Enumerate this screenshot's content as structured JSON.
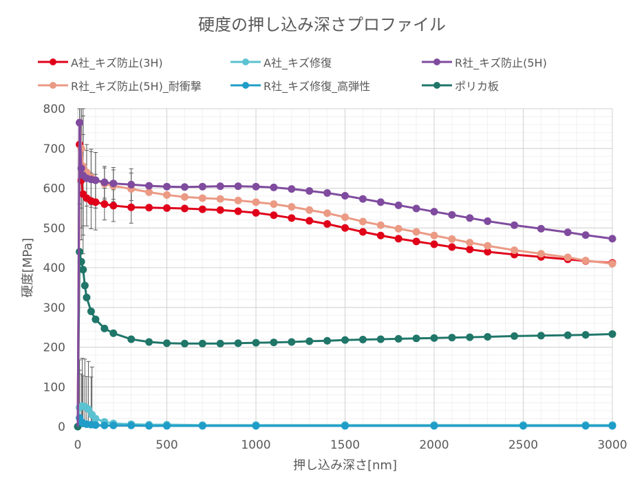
{
  "chart_data": {
    "type": "line",
    "title": "硬度の押し込み深さプロファイル",
    "xlabel": "押し込み深さ[nm]",
    "ylabel": "硬度[MPa]",
    "xlim": [
      0,
      3000
    ],
    "ylim": [
      0,
      800
    ],
    "x_ticks": [
      "0",
      "500",
      "1000",
      "1500",
      "2000",
      "2500",
      "3000"
    ],
    "y_ticks": [
      "0",
      "100",
      "200",
      "300",
      "400",
      "500",
      "600",
      "700",
      "800"
    ],
    "grid": true,
    "legend_position": "top",
    "error_bar_color": "#595959",
    "series": [
      {
        "name": "A社_キズ防止(3H)",
        "color": "#e00019",
        "x": [
          10,
          20,
          30,
          50,
          75,
          100,
          150,
          200,
          300,
          400,
          500,
          600,
          700,
          800,
          900,
          1000,
          1100,
          1200,
          1300,
          1400,
          1500,
          1600,
          1700,
          1800,
          1900,
          2000,
          2100,
          2200,
          2300,
          2450,
          2600,
          2750,
          2850,
          3000
        ],
        "y": [
          710,
          620,
          585,
          575,
          568,
          565,
          560,
          556,
          552,
          551,
          550,
          549,
          547,
          545,
          542,
          538,
          532,
          525,
          518,
          510,
          500,
          490,
          481,
          473,
          466,
          459,
          452,
          446,
          440,
          433,
          427,
          421,
          417,
          412
        ]
      },
      {
        "name": "A社_キズ修復",
        "color": "#5bc2d1",
        "x": [
          10,
          25,
          40,
          60,
          80,
          100,
          150,
          200,
          300,
          400,
          500,
          700,
          1000,
          1500,
          2000,
          2500,
          2850,
          3000
        ],
        "y": [
          48,
          52,
          50,
          44,
          30,
          20,
          12,
          8,
          6,
          5,
          5,
          4,
          4,
          4,
          4,
          4,
          4,
          4
        ]
      },
      {
        "name": "R社_キズ防止(5H)",
        "color": "#7f4b9e",
        "x": [
          10,
          20,
          30,
          50,
          75,
          100,
          150,
          200,
          300,
          400,
          500,
          600,
          700,
          800,
          900,
          1000,
          1100,
          1200,
          1300,
          1400,
          1500,
          1600,
          1700,
          1800,
          1900,
          2000,
          2100,
          2200,
          2300,
          2450,
          2600,
          2750,
          2850,
          3000
        ],
        "y": [
          765,
          650,
          632,
          625,
          622,
          620,
          615,
          612,
          609,
          606,
          604,
          603,
          604,
          605,
          605,
          604,
          602,
          598,
          593,
          588,
          581,
          573,
          565,
          557,
          549,
          541,
          533,
          525,
          517,
          507,
          498,
          489,
          482,
          473
        ]
      },
      {
        "name": "R社_キズ防止(5H)_耐衝撃",
        "color": "#eb9a84",
        "x": [
          10,
          20,
          30,
          50,
          75,
          100,
          150,
          200,
          300,
          400,
          500,
          600,
          700,
          800,
          900,
          1000,
          1100,
          1200,
          1300,
          1400,
          1500,
          1600,
          1700,
          1800,
          1900,
          2000,
          2100,
          2200,
          2300,
          2450,
          2600,
          2750,
          2850,
          3000
        ],
        "y": [
          765,
          700,
          655,
          640,
          628,
          620,
          611,
          606,
          598,
          590,
          583,
          578,
          575,
          573,
          569,
          565,
          560,
          553,
          545,
          537,
          527,
          516,
          507,
          498,
          490,
          481,
          472,
          463,
          455,
          444,
          435,
          426,
          418,
          410
        ]
      },
      {
        "name": "R社_キズ修復_高弾性",
        "color": "#1f9dc8",
        "x": [
          10,
          20,
          30,
          50,
          75,
          100,
          150,
          200,
          300,
          400,
          500,
          700,
          1000,
          1500,
          2000,
          2500,
          2850,
          3000
        ],
        "y": [
          22,
          12,
          8,
          6,
          5,
          4,
          3,
          3,
          3,
          2,
          2,
          2,
          2,
          2,
          2,
          2,
          2,
          2
        ]
      },
      {
        "name": "ポリカ板",
        "color": "#1f7669",
        "x": [
          0,
          10,
          20,
          30,
          40,
          50,
          75,
          100,
          150,
          200,
          300,
          400,
          500,
          600,
          700,
          800,
          900,
          1000,
          1100,
          1200,
          1300,
          1400,
          1500,
          1600,
          1700,
          1800,
          1900,
          2000,
          2100,
          2200,
          2300,
          2450,
          2600,
          2750,
          2850,
          3000
        ],
        "y": [
          0,
          440,
          415,
          395,
          355,
          325,
          290,
          270,
          247,
          235,
          220,
          213,
          210,
          209,
          209,
          209,
          210,
          211,
          212,
          213,
          215,
          216,
          218,
          219,
          220,
          221,
          222,
          223,
          224,
          225,
          226,
          228,
          229,
          230,
          231,
          233
        ]
      }
    ]
  }
}
